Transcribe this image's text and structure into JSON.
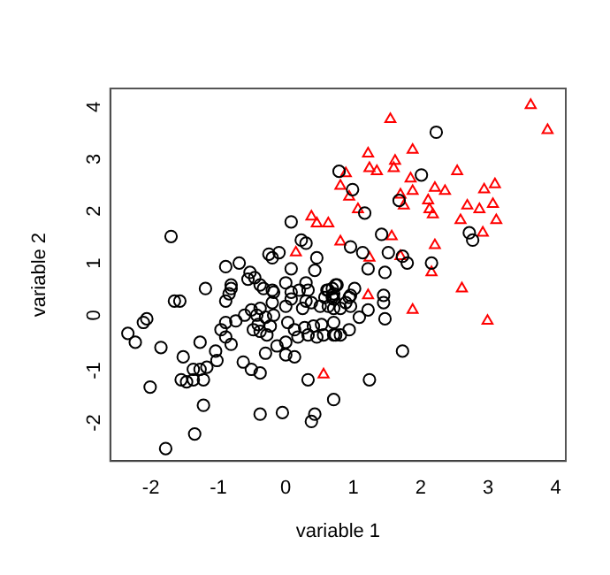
{
  "chart_data": {
    "type": "scatter",
    "xlabel": "variable 1",
    "ylabel": "variable 2",
    "xlim": [
      -2.6,
      4.15
    ],
    "ylim": [
      -2.9,
      4.25
    ],
    "xticks": [
      -2,
      -1,
      0,
      1,
      2,
      3,
      4
    ],
    "yticks": [
      -2,
      -1,
      0,
      1,
      2,
      3,
      4
    ],
    "grid": false,
    "legend": false,
    "series": [
      {
        "color": "#000000",
        "marker": "circle",
        "x": [
          0.79,
          0.08,
          -1.7,
          0.23,
          0.3,
          -0.25,
          -0.2,
          -0.1,
          0.46,
          -0.69,
          -0.89,
          0.08,
          0.43,
          -0.53,
          -0.46,
          -0.56,
          -0.81,
          -1.19,
          -0.38,
          -0.33,
          -0.2,
          0.0,
          0.3,
          0.2,
          0.76,
          0.61,
          0.69,
          -0.84,
          -1.65,
          -1.57,
          -0.89,
          0.08,
          0.3,
          0.08,
          2.23,
          0.99,
          2.01,
          1.68,
          1.17,
          2.72,
          2.77,
          1.42,
          0.96,
          1.14,
          1.52,
          1.73,
          1.8,
          1.22,
          1.47,
          2.16,
          0.74,
          0.63,
          1.02,
          0.96,
          1.45,
          0.69,
          -0.81,
          -0.18,
          0.33,
          0.58,
          0.71,
          0.63,
          0.81,
          0.51,
          0.38,
          0.25,
          0.0,
          -0.2,
          -0.38,
          -0.51,
          -0.61,
          -0.74,
          -0.89,
          -0.43,
          -0.3,
          -0.18,
          -0.41,
          -0.23,
          -0.48,
          -0.38,
          -0.28,
          0.03,
          0.13,
          0.28,
          0.41,
          0.53,
          0.71,
          0.18,
          0.33,
          0.46,
          0.56,
          0.71,
          0.81,
          0.0,
          -0.13,
          -0.3,
          0.0,
          0.13,
          -0.63,
          -0.51,
          -0.38,
          -0.96,
          -0.89,
          -0.81,
          -1.04,
          -1.27,
          -1.02,
          -1.17,
          -1.27,
          -1.37,
          -1.55,
          -1.47,
          -1.37,
          -1.22,
          -1.52,
          -1.85,
          -2.34,
          -2.23,
          -2.11,
          -2.06,
          -2.01,
          -1.22,
          -0.38,
          -0.05,
          0.43,
          0.38,
          0.71,
          0.33,
          -1.35,
          -1.78,
          0.69,
          0.71,
          0.71,
          0.89,
          0.96,
          0.94,
          1.45,
          1.22,
          1.09,
          1.47,
          0.94,
          0.74,
          1.73,
          1.24
        ],
        "values": [
          2.66,
          1.69,
          1.41,
          1.34,
          1.28,
          1.07,
          1.0,
          1.1,
          1.0,
          0.9,
          0.83,
          0.79,
          0.76,
          0.72,
          0.62,
          0.59,
          0.48,
          0.41,
          0.48,
          0.41,
          0.38,
          0.52,
          0.52,
          0.38,
          0.48,
          0.38,
          0.28,
          0.31,
          0.17,
          0.17,
          0.17,
          0.21,
          0.17,
          0.34,
          3.41,
          2.31,
          2.59,
          2.1,
          1.86,
          1.48,
          1.34,
          1.45,
          1.21,
          1.1,
          1.1,
          1.03,
          0.9,
          0.79,
          0.72,
          0.9,
          0.48,
          0.38,
          0.41,
          0.28,
          0.28,
          0.24,
          0.41,
          0.34,
          0.38,
          0.24,
          0.31,
          0.07,
          0.03,
          0.07,
          0.14,
          0.03,
          0.07,
          0.14,
          0.03,
          0.0,
          -0.1,
          -0.21,
          -0.24,
          -0.1,
          -0.14,
          -0.1,
          -0.28,
          -0.31,
          -0.38,
          -0.41,
          -0.48,
          -0.24,
          -0.38,
          -0.34,
          -0.31,
          -0.28,
          -0.24,
          -0.52,
          -0.48,
          -0.52,
          -0.48,
          -0.48,
          -0.48,
          -0.62,
          -0.69,
          -0.83,
          -0.86,
          -0.9,
          -1.0,
          -1.14,
          -1.21,
          -0.38,
          -0.52,
          -0.66,
          -0.79,
          -0.62,
          -0.97,
          -1.1,
          -1.14,
          -1.14,
          -1.34,
          -1.38,
          -1.34,
          -1.34,
          -0.9,
          -0.72,
          -0.45,
          -0.62,
          -0.24,
          -0.17,
          -1.48,
          -1.83,
          -2.0,
          -1.97,
          -2.0,
          -2.14,
          -1.72,
          -1.34,
          -2.38,
          -2.66,
          0.41,
          0.21,
          0.03,
          0.14,
          0.07,
          0.24,
          0.14,
          0.0,
          -0.14,
          -0.17,
          -0.38,
          -0.48,
          -0.79,
          -1.34
        ]
      },
      {
        "color": "#ff0000",
        "marker": "triangle",
        "x": [
          3.63,
          3.88,
          1.55,
          1.88,
          1.22,
          1.62,
          1.24,
          1.35,
          1.6,
          2.54,
          0.89,
          0.81,
          1.85,
          2.21,
          2.36,
          2.94,
          3.1,
          1.88,
          1.7,
          0.94,
          1.75,
          2.11,
          2.13,
          2.18,
          2.69,
          2.87,
          3.07,
          1.07,
          0.63,
          2.59,
          3.12,
          2.92,
          1.57,
          0.81,
          2.21,
          1.24,
          1.7,
          2.16,
          2.61,
          1.22,
          0.38,
          0.46,
          0.15,
          1.88,
          2.99,
          0.56
        ],
        "values": [
          3.93,
          3.45,
          3.66,
          3.07,
          3.0,
          2.86,
          2.72,
          2.66,
          2.72,
          2.66,
          2.62,
          2.38,
          2.52,
          2.34,
          2.28,
          2.31,
          2.41,
          2.28,
          2.21,
          2.17,
          2.0,
          2.1,
          1.93,
          1.83,
          2.0,
          1.93,
          2.03,
          1.93,
          1.66,
          1.72,
          1.72,
          1.48,
          1.41,
          1.31,
          1.24,
          1.0,
          1.03,
          0.72,
          0.41,
          0.28,
          1.79,
          1.66,
          1.1,
          0.0,
          -0.21,
          -1.24
        ]
      }
    ]
  }
}
